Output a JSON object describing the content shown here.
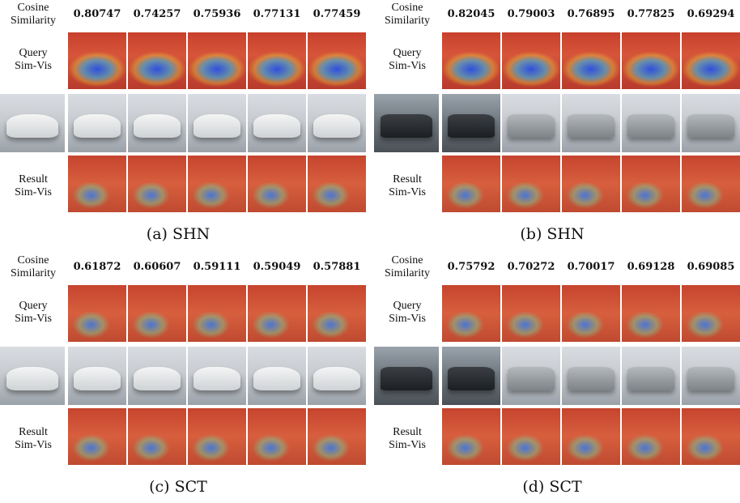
{
  "labels": {
    "cosine": "Cosine\nSimilarity",
    "query_vis": "Query\nSim-Vis",
    "result_vis": "Result\nSim-Vis"
  },
  "panels": [
    {
      "caption": "(a) SHN",
      "scores": [
        "0.80747",
        "0.74257",
        "0.75936",
        "0.77131",
        "0.77459"
      ],
      "subject": "white-car"
    },
    {
      "caption": "(b) SHN",
      "scores": [
        "0.82045",
        "0.79003",
        "0.76895",
        "0.77825",
        "0.69294"
      ],
      "subject": "truck"
    },
    {
      "caption": "(c) SCT",
      "scores": [
        "0.61872",
        "0.60607",
        "0.59111",
        "0.59049",
        "0.57881"
      ],
      "subject": "white-car"
    },
    {
      "caption": "(d) SCT",
      "scores": [
        "0.75792",
        "0.70272",
        "0.70017",
        "0.69128",
        "0.69085"
      ],
      "subject": "truck"
    }
  ],
  "colors": {
    "match_border": "#22e03a",
    "heat_hot": "#c8402c",
    "heat_cold": "#2850e6"
  }
}
